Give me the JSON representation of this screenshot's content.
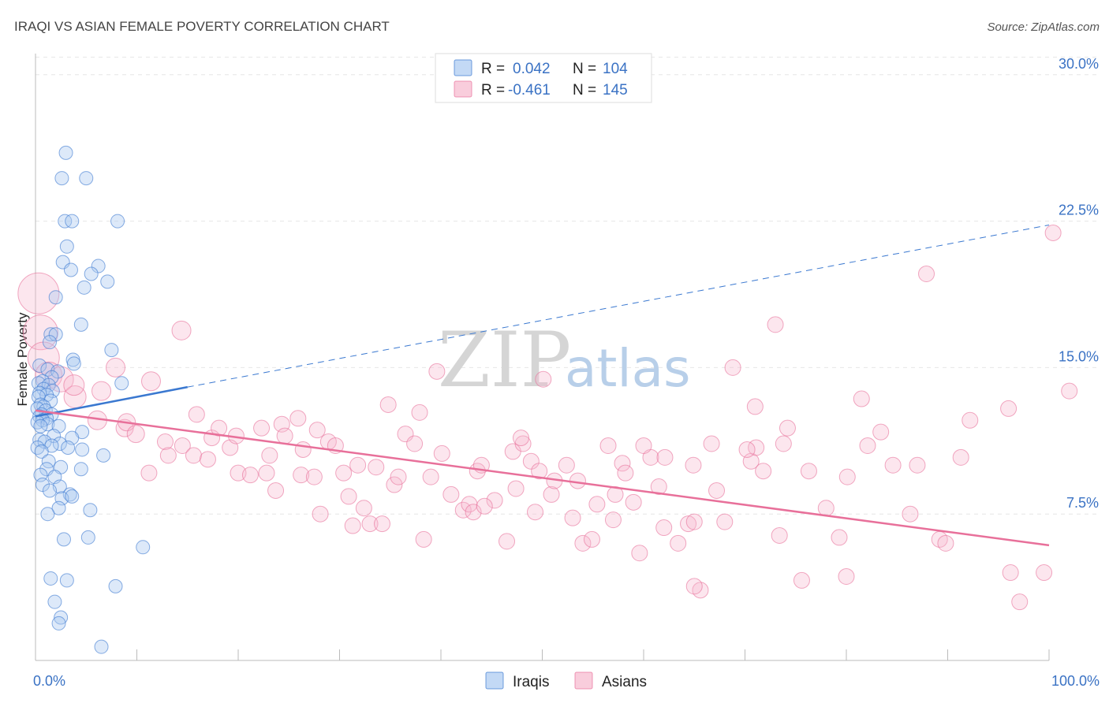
{
  "chart_data": {
    "type": "scatter",
    "title": "IRAQI VS ASIAN FEMALE POVERTY CORRELATION CHART",
    "source": "Source: ZipAtlas.com",
    "ylabel": "Female Poverty",
    "xlim": [
      0,
      100
    ],
    "ylim": [
      0,
      31
    ],
    "y_ticks": [
      {
        "value": 7.5,
        "label": "7.5%"
      },
      {
        "value": 15,
        "label": "15.0%"
      },
      {
        "value": 22.5,
        "label": "22.5%"
      },
      {
        "value": 30,
        "label": "30.0%"
      }
    ],
    "x_tick_labels": [
      {
        "value": 0,
        "label": "0.0%"
      },
      {
        "value": 100,
        "label": "100.0%"
      }
    ],
    "grid": true,
    "legend_top": {
      "placement": "top-center",
      "entries": [
        {
          "r_label": "R =",
          "r_value": "0.042",
          "n_label": "N =",
          "n_value": "104",
          "color": "#7aaee8"
        },
        {
          "r_label": "R =",
          "r_value": "-0.461",
          "n_label": "N =",
          "n_value": "145",
          "color": "#f2a0bc"
        }
      ]
    },
    "legend_bottom": [
      {
        "name": "Iraqis",
        "color": "#7aaee8"
      },
      {
        "name": "Asians",
        "color": "#f2a0bc"
      }
    ],
    "watermark": {
      "zip": "ZIP",
      "atlas": "atlas"
    },
    "series": [
      {
        "name": "Iraqis",
        "color": "#3a78d0",
        "fill": "#a9c9f1",
        "trend": {
          "x0": 0,
          "y0": 12.5,
          "x1": 15,
          "y1": 14.0,
          "x_dash_end": 100,
          "y_dash_end": 22.3
        },
        "points": [
          [
            3.0,
            26.0
          ],
          [
            2.6,
            24.7
          ],
          [
            5.0,
            24.7
          ],
          [
            2.9,
            22.5
          ],
          [
            3.6,
            22.5
          ],
          [
            8.1,
            22.5
          ],
          [
            3.1,
            21.2
          ],
          [
            2.7,
            20.4
          ],
          [
            3.5,
            20.0
          ],
          [
            6.2,
            20.2
          ],
          [
            5.5,
            19.8
          ],
          [
            4.8,
            19.1
          ],
          [
            7.1,
            19.4
          ],
          [
            2.0,
            18.6
          ],
          [
            4.5,
            17.2
          ],
          [
            1.5,
            16.7
          ],
          [
            2.0,
            16.7
          ],
          [
            1.4,
            16.3
          ],
          [
            7.5,
            15.9
          ],
          [
            3.7,
            15.4
          ],
          [
            3.8,
            15.2
          ],
          [
            0.4,
            15.1
          ],
          [
            1.2,
            14.9
          ],
          [
            2.2,
            14.8
          ],
          [
            1.6,
            14.5
          ],
          [
            0.7,
            14.3
          ],
          [
            0.3,
            14.2
          ],
          [
            1.3,
            14.1
          ],
          [
            0.8,
            13.9
          ],
          [
            1.7,
            13.8
          ],
          [
            0.4,
            13.7
          ],
          [
            1.1,
            13.6
          ],
          [
            0.3,
            13.5
          ],
          [
            1.5,
            13.3
          ],
          [
            8.5,
            14.2
          ],
          [
            0.5,
            13.1
          ],
          [
            0.8,
            13.0
          ],
          [
            0.2,
            12.9
          ],
          [
            1.0,
            12.8
          ],
          [
            0.6,
            12.6
          ],
          [
            1.6,
            12.6
          ],
          [
            0.4,
            12.5
          ],
          [
            1.1,
            12.4
          ],
          [
            0.7,
            12.3
          ],
          [
            0.2,
            12.2
          ],
          [
            1.2,
            12.1
          ],
          [
            2.3,
            12.0
          ],
          [
            0.5,
            12.0
          ],
          [
            4.6,
            11.7
          ],
          [
            1.8,
            11.5
          ],
          [
            0.4,
            11.3
          ],
          [
            3.6,
            11.4
          ],
          [
            0.9,
            11.2
          ],
          [
            2.4,
            11.1
          ],
          [
            1.6,
            11.0
          ],
          [
            0.2,
            10.9
          ],
          [
            3.2,
            10.9
          ],
          [
            4.6,
            10.8
          ],
          [
            0.6,
            10.7
          ],
          [
            6.7,
            10.5
          ],
          [
            1.3,
            10.2
          ],
          [
            2.5,
            9.9
          ],
          [
            1.1,
            9.8
          ],
          [
            4.5,
            9.8
          ],
          [
            0.5,
            9.5
          ],
          [
            1.9,
            9.4
          ],
          [
            0.7,
            9.0
          ],
          [
            2.4,
            8.9
          ],
          [
            1.4,
            8.7
          ],
          [
            3.4,
            8.5
          ],
          [
            2.6,
            8.3
          ],
          [
            3.6,
            8.4
          ],
          [
            2.3,
            7.8
          ],
          [
            5.4,
            7.7
          ],
          [
            1.2,
            7.5
          ],
          [
            2.8,
            6.2
          ],
          [
            5.2,
            6.3
          ],
          [
            10.6,
            5.8
          ],
          [
            1.5,
            4.2
          ],
          [
            3.1,
            4.1
          ],
          [
            7.9,
            3.8
          ],
          [
            1.9,
            3.0
          ],
          [
            2.5,
            2.2
          ],
          [
            2.3,
            1.9
          ],
          [
            6.5,
            0.7
          ]
        ]
      },
      {
        "name": "Asians",
        "color": "#e8709a",
        "fill": "#f6b8cd",
        "trend": {
          "x0": 0,
          "y0": 12.8,
          "x1": 100,
          "y1": 5.9
        },
        "points": [
          [
            0.3,
            18.8,
            26
          ],
          [
            0.5,
            16.8,
            22
          ],
          [
            0.8,
            15.5,
            20
          ],
          [
            1.3,
            14.6,
            17
          ],
          [
            2.5,
            14.4,
            16
          ],
          [
            3.9,
            13.5,
            14
          ],
          [
            3.8,
            14.1,
            13
          ],
          [
            6.1,
            12.3,
            12
          ],
          [
            11.4,
            14.3,
            12
          ],
          [
            14.4,
            16.9,
            12
          ],
          [
            7.9,
            15.0,
            12
          ],
          [
            6.5,
            13.8,
            12
          ],
          [
            8.8,
            11.9,
            11
          ],
          [
            9.0,
            12.2,
            11
          ],
          [
            9.9,
            11.6,
            11
          ],
          [
            11.2,
            9.6,
            10
          ],
          [
            12.8,
            11.2,
            10
          ],
          [
            13.1,
            10.5,
            10
          ],
          [
            14.5,
            11.0,
            10
          ],
          [
            15.6,
            10.5,
            10
          ],
          [
            15.9,
            12.6,
            10
          ],
          [
            17.0,
            10.3,
            10
          ],
          [
            17.4,
            11.4,
            10
          ],
          [
            18.1,
            11.9,
            10
          ],
          [
            19.2,
            10.9,
            10
          ],
          [
            19.8,
            11.5,
            10
          ],
          [
            20.0,
            9.6,
            10
          ],
          [
            21.2,
            9.5,
            10
          ],
          [
            22.3,
            11.9,
            10
          ],
          [
            22.8,
            9.6,
            10
          ],
          [
            23.1,
            10.5,
            10
          ],
          [
            23.7,
            8.7,
            10
          ],
          [
            24.3,
            12.1,
            10
          ],
          [
            24.6,
            11.5,
            10
          ],
          [
            26.2,
            9.5,
            10
          ],
          [
            25.9,
            12.4,
            10
          ],
          [
            26.4,
            10.8,
            10
          ],
          [
            27.5,
            9.4,
            10
          ],
          [
            27.8,
            11.8,
            10
          ],
          [
            28.1,
            7.5,
            10
          ],
          [
            28.9,
            11.2,
            10
          ],
          [
            29.6,
            11.0,
            10
          ],
          [
            30.4,
            9.6,
            10
          ],
          [
            30.9,
            8.4,
            10
          ],
          [
            31.3,
            6.9,
            10
          ],
          [
            31.8,
            10.0,
            10
          ],
          [
            32.4,
            7.8,
            10
          ],
          [
            33.0,
            7.0,
            10
          ],
          [
            34.2,
            7.0,
            10
          ],
          [
            33.6,
            9.9,
            10
          ],
          [
            34.8,
            13.1,
            10
          ],
          [
            35.4,
            9.0,
            10
          ],
          [
            35.8,
            9.4,
            10
          ],
          [
            36.5,
            11.6,
            10
          ],
          [
            37.9,
            12.7,
            10
          ],
          [
            37.4,
            11.1,
            10
          ],
          [
            38.3,
            6.2,
            10
          ],
          [
            39.0,
            9.4,
            10
          ],
          [
            39.6,
            14.8,
            10
          ],
          [
            40.1,
            10.6,
            10
          ],
          [
            41.0,
            8.5,
            10
          ],
          [
            42.2,
            7.7,
            10
          ],
          [
            42.8,
            8.0,
            10
          ],
          [
            43.2,
            7.6,
            10
          ],
          [
            43.6,
            9.7,
            10
          ],
          [
            44.0,
            10.0,
            10
          ],
          [
            45.3,
            8.2,
            10
          ],
          [
            44.3,
            7.9,
            10
          ],
          [
            47.1,
            10.7,
            10
          ],
          [
            47.4,
            8.8,
            10
          ],
          [
            48.1,
            11.1,
            10
          ],
          [
            47.9,
            11.4,
            10
          ],
          [
            48.9,
            10.2,
            10
          ],
          [
            49.3,
            7.6,
            10
          ],
          [
            49.7,
            9.7,
            10
          ],
          [
            50.1,
            14.4,
            10
          ],
          [
            50.9,
            8.5,
            10
          ],
          [
            51.2,
            9.2,
            10
          ],
          [
            52.4,
            10.0,
            10
          ],
          [
            53.0,
            7.3,
            10
          ],
          [
            53.5,
            9.2,
            10
          ],
          [
            54.0,
            6.0,
            10
          ],
          [
            54.9,
            6.2,
            10
          ],
          [
            55.4,
            8.0,
            10
          ],
          [
            56.5,
            11.0,
            10
          ],
          [
            57.2,
            8.5,
            10
          ],
          [
            57.9,
            10.1,
            10
          ],
          [
            58.2,
            9.6,
            10
          ],
          [
            59.0,
            8.1,
            10
          ],
          [
            59.6,
            5.5,
            10
          ],
          [
            60.7,
            10.4,
            10
          ],
          [
            62.0,
            6.8,
            10
          ],
          [
            61.5,
            8.9,
            10
          ],
          [
            63.4,
            6.0,
            10
          ],
          [
            64.4,
            7.0,
            10
          ],
          [
            65.0,
            7.1,
            10
          ],
          [
            64.9,
            10.0,
            10
          ],
          [
            65.6,
            3.6,
            10
          ],
          [
            65.0,
            3.8,
            10
          ],
          [
            68.0,
            7.1,
            10
          ],
          [
            67.2,
            8.7,
            10
          ],
          [
            66.7,
            11.1,
            10
          ],
          [
            70.6,
            10.2,
            10
          ],
          [
            71.8,
            9.7,
            10
          ],
          [
            71.1,
            10.9,
            10
          ],
          [
            70.2,
            10.8,
            10
          ],
          [
            74.2,
            11.9,
            10
          ],
          [
            73.8,
            11.1,
            10
          ],
          [
            73.4,
            6.4,
            10
          ],
          [
            75.6,
            4.1,
            10
          ],
          [
            76.3,
            9.7,
            10
          ],
          [
            78.0,
            7.8,
            10
          ],
          [
            79.3,
            6.3,
            10
          ],
          [
            80.0,
            4.3,
            10
          ],
          [
            80.1,
            9.4,
            10
          ],
          [
            81.5,
            13.4,
            10
          ],
          [
            82.1,
            11.0,
            10
          ],
          [
            83.4,
            11.7,
            10
          ],
          [
            84.6,
            10.0,
            10
          ],
          [
            86.3,
            7.5,
            10
          ],
          [
            87.0,
            10.0,
            10
          ],
          [
            89.2,
            6.2,
            10
          ],
          [
            89.8,
            6.0,
            10
          ],
          [
            91.3,
            10.4,
            10
          ],
          [
            97.1,
            3.0,
            10
          ],
          [
            92.2,
            12.3,
            10
          ],
          [
            96.2,
            4.5,
            10
          ],
          [
            99.5,
            4.5,
            10
          ],
          [
            102.0,
            13.8,
            10
          ],
          [
            68.8,
            15.0,
            10
          ],
          [
            73.0,
            17.2,
            10
          ],
          [
            87.9,
            19.8,
            10
          ],
          [
            96.0,
            12.9,
            10
          ],
          [
            100.4,
            21.9,
            10
          ],
          [
            71.0,
            13.0,
            10
          ],
          [
            62.1,
            10.4,
            10
          ],
          [
            60.0,
            11.0,
            10
          ],
          [
            57.0,
            7.2,
            10
          ],
          [
            46.5,
            6.1,
            10
          ]
        ]
      }
    ]
  }
}
